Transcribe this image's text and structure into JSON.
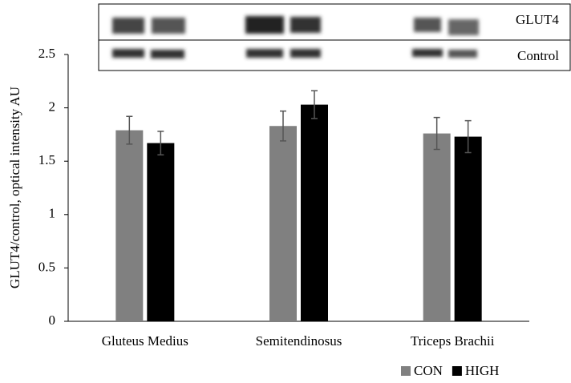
{
  "chart_data": {
    "type": "bar",
    "y_label": "GLUT4/control, optical intensity AU",
    "categories": [
      "Gluteus Medius",
      "Semitendinosus",
      "Triceps Brachii"
    ],
    "series": [
      {
        "name": "CON",
        "color": "#808080",
        "values": [
          1.79,
          1.83,
          1.76
        ],
        "errors": [
          0.13,
          0.14,
          0.15
        ]
      },
      {
        "name": "HIGH",
        "color": "#000000",
        "values": [
          1.67,
          2.03,
          1.73
        ],
        "errors": [
          0.11,
          0.13,
          0.15
        ]
      }
    ],
    "ylim": [
      0,
      2.5
    ],
    "yticks": [
      0,
      0.5,
      1,
      1.5,
      2,
      2.5
    ],
    "blot_labels": [
      "GLUT4",
      "Control"
    ]
  }
}
